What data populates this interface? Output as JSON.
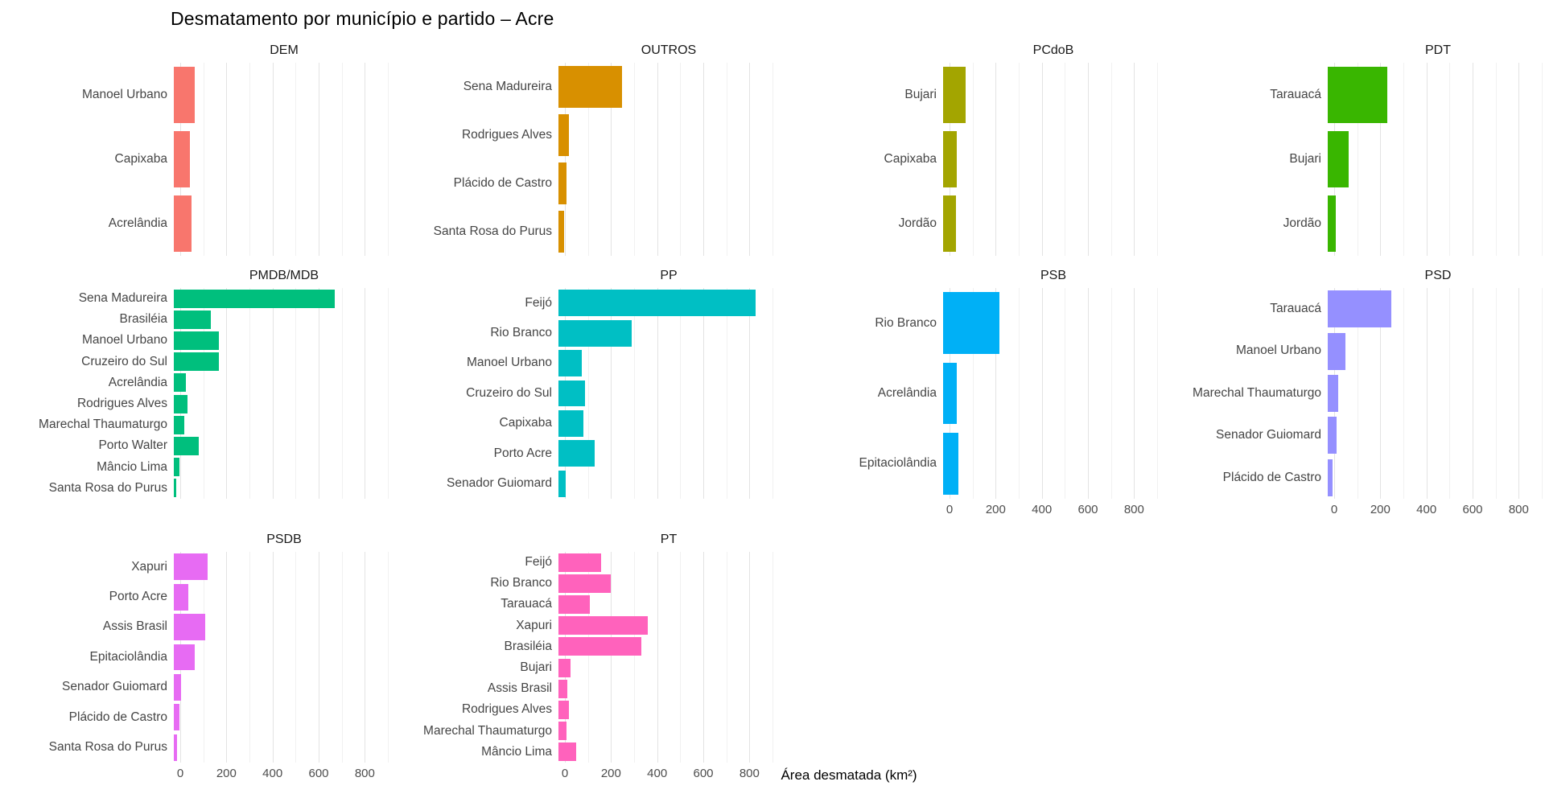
{
  "page": {
    "background": "#ffffff",
    "text_color": "#454545",
    "tick_color": "#4d4d4d"
  },
  "chart_data": {
    "type": "bar",
    "orientation": "horizontal",
    "title": "Desmatamento por município e partido – Acre",
    "xlabel": "Área desmatada (km²)",
    "ylabel": "",
    "xlim": [
      0,
      900
    ],
    "xticks": [
      0,
      200,
      400,
      600,
      800
    ],
    "grid": {
      "major_every": 200,
      "minor_every": 100,
      "major_color": "#e3e3e3",
      "minor_color": "#f1f1f1",
      "grid_on": true
    },
    "legend_position": "none",
    "facet_columns": 4,
    "facets": [
      {
        "party": "DEM",
        "color": "#F8766D",
        "show_x_axis": false,
        "categories": [
          "Manoel Urbano",
          "Capixaba",
          "Acrelândia"
        ],
        "values": [
          92,
          70,
          77
        ]
      },
      {
        "party": "OUTROS",
        "color": "#D89000",
        "show_x_axis": false,
        "categories": [
          "Sena Madureira",
          "Rodrigues Alves",
          "Plácido de Castro",
          "Santa Rosa do Purus"
        ],
        "values": [
          274,
          47,
          36,
          25
        ]
      },
      {
        "party": "PCdoB",
        "color": "#A3A500",
        "show_x_axis": false,
        "categories": [
          "Bujari",
          "Capixaba",
          "Jordão"
        ],
        "values": [
          96,
          59,
          57
        ]
      },
      {
        "party": "PDT",
        "color": "#39B600",
        "show_x_axis": false,
        "categories": [
          "Tarauacá",
          "Bujari",
          "Jordão"
        ],
        "values": [
          257,
          92,
          36
        ]
      },
      {
        "party": "PMDB/MDB",
        "color": "#00BF7D",
        "show_x_axis": false,
        "categories": [
          "Sena Madureira",
          "Brasiléia",
          "Manoel Urbano",
          "Cruzeiro do Sul",
          "Acrelândia",
          "Rodrigues Alves",
          "Marechal Thaumaturgo",
          "Porto Walter",
          "Mâncio Lima",
          "Santa Rosa do Purus"
        ],
        "values": [
          696,
          161,
          195,
          196,
          54,
          60,
          45,
          109,
          26,
          12
        ]
      },
      {
        "party": "PP",
        "color": "#00BFC4",
        "show_x_axis": false,
        "categories": [
          "Feijó",
          "Rio Branco",
          "Manoel Urbano",
          "Cruzeiro do Sul",
          "Capixaba",
          "Porto Acre",
          "Senador Guiomard"
        ],
        "values": [
          854,
          317,
          100,
          114,
          107,
          158,
          32
        ]
      },
      {
        "party": "PSB",
        "color": "#00B0F6",
        "show_x_axis": true,
        "categories": [
          "Rio Branco",
          "Acrelândia",
          "Epitaciolândia"
        ],
        "values": [
          244,
          60,
          65
        ]
      },
      {
        "party": "PSD",
        "color": "#9590FF",
        "show_x_axis": true,
        "categories": [
          "Tarauacá",
          "Manoel Urbano",
          "Marechal Thaumaturgo",
          "Senador Guiomard",
          "Plácido de Castro"
        ],
        "values": [
          275,
          75,
          44,
          38,
          21
        ]
      },
      {
        "party": "PSDB",
        "color": "#E76BF3",
        "show_x_axis": true,
        "categories": [
          "Xapuri",
          "Porto Acre",
          "Assis Brasil",
          "Epitaciolândia",
          "Senador Guiomard",
          "Plácido de Castro",
          "Santa Rosa do Purus"
        ],
        "values": [
          145,
          62,
          135,
          91,
          30,
          24,
          14
        ]
      },
      {
        "party": "PT",
        "color": "#FF62BC",
        "show_x_axis": true,
        "categories": [
          "Feijó",
          "Rio Branco",
          "Tarauacá",
          "Xapuri",
          "Brasiléia",
          "Bujari",
          "Assis Brasil",
          "Rodrigues Alves",
          "Marechal Thaumaturgo",
          "Mâncio Lima"
        ],
        "values": [
          186,
          228,
          136,
          388,
          358,
          54,
          37,
          44,
          36,
          78
        ]
      }
    ]
  }
}
